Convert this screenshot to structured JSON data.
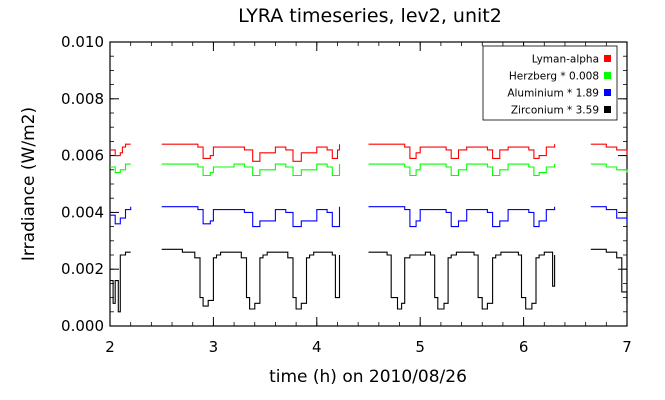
{
  "chart_data": {
    "type": "line",
    "title": "LYRA timeseries, lev2, unit2",
    "xlabel": "time (h) on 2010/08/26",
    "ylabel": "Irradiance (W/m2)",
    "xlim": [
      2,
      7
    ],
    "ylim": [
      0.0,
      0.01
    ],
    "x_ticks": [
      "2",
      "3",
      "4",
      "5",
      "6",
      "7"
    ],
    "y_ticks": [
      "0.000",
      "0.002",
      "0.004",
      "0.006",
      "0.008",
      "0.010"
    ],
    "legend_position": "top-right",
    "data_gaps": [
      [
        2.2,
        2.45
      ],
      [
        4.22,
        4.5
      ],
      [
        6.3,
        6.65
      ]
    ],
    "series": [
      {
        "name": "Lyman-alpha",
        "color": "#ff0000",
        "x": [
          2.0,
          2.05,
          2.1,
          2.12,
          2.15,
          2.2,
          2.5,
          2.7,
          2.85,
          2.9,
          2.97,
          3.0,
          3.2,
          3.3,
          3.38,
          3.45,
          3.6,
          3.7,
          3.77,
          3.85,
          4.0,
          4.1,
          4.15,
          4.2,
          4.22,
          4.5,
          4.7,
          4.85,
          4.9,
          4.96,
          5.0,
          5.25,
          5.3,
          5.37,
          5.45,
          5.65,
          5.7,
          5.77,
          5.85,
          6.05,
          6.1,
          6.15,
          6.22,
          6.3,
          6.65,
          6.8,
          6.9,
          7.0
        ],
        "values": [
          0.0062,
          0.006,
          0.0061,
          0.0063,
          0.0064,
          0.0064,
          0.0064,
          0.0064,
          0.0063,
          0.0059,
          0.006,
          0.0063,
          0.0063,
          0.0062,
          0.0058,
          0.0061,
          0.0063,
          0.0062,
          0.0058,
          0.0061,
          0.0063,
          0.0062,
          0.0059,
          0.0062,
          0.0064,
          0.0064,
          0.0064,
          0.0063,
          0.0059,
          0.0061,
          0.0063,
          0.0062,
          0.0059,
          0.0062,
          0.0063,
          0.0062,
          0.0059,
          0.0062,
          0.0063,
          0.0062,
          0.0059,
          0.006,
          0.0063,
          0.0064,
          0.0064,
          0.0063,
          0.0062,
          0.006
        ]
      },
      {
        "name": "Herzberg * 0.008",
        "color": "#00ff00",
        "x": [
          2.0,
          2.05,
          2.1,
          2.15,
          2.2,
          2.5,
          2.7,
          2.85,
          2.9,
          2.97,
          3.0,
          3.2,
          3.3,
          3.38,
          3.45,
          3.6,
          3.7,
          3.77,
          3.85,
          4.0,
          4.1,
          4.15,
          4.22,
          4.5,
          4.7,
          4.85,
          4.9,
          4.96,
          5.0,
          5.25,
          5.3,
          5.37,
          5.45,
          5.65,
          5.7,
          5.77,
          5.85,
          6.05,
          6.1,
          6.15,
          6.22,
          6.3,
          6.65,
          6.8,
          6.9,
          7.0
        ],
        "values": [
          0.0056,
          0.0054,
          0.0055,
          0.0057,
          0.0057,
          0.0057,
          0.0057,
          0.0056,
          0.0053,
          0.0054,
          0.0056,
          0.0057,
          0.0056,
          0.0053,
          0.0055,
          0.0057,
          0.0056,
          0.0053,
          0.0055,
          0.0057,
          0.0056,
          0.0053,
          0.0057,
          0.0057,
          0.0057,
          0.0056,
          0.0053,
          0.0055,
          0.0057,
          0.0056,
          0.0053,
          0.0055,
          0.0057,
          0.0056,
          0.0053,
          0.0055,
          0.0057,
          0.0056,
          0.0053,
          0.0054,
          0.0056,
          0.0057,
          0.0057,
          0.0056,
          0.0055,
          0.0054
        ]
      },
      {
        "name": "Aluminium * 1.89",
        "color": "#0000ff",
        "x": [
          2.0,
          2.05,
          2.1,
          2.15,
          2.2,
          2.5,
          2.7,
          2.85,
          2.9,
          2.97,
          3.0,
          3.2,
          3.3,
          3.38,
          3.45,
          3.6,
          3.7,
          3.77,
          3.85,
          4.0,
          4.1,
          4.15,
          4.22,
          4.5,
          4.7,
          4.85,
          4.9,
          4.96,
          5.0,
          5.25,
          5.3,
          5.37,
          5.45,
          5.65,
          5.7,
          5.77,
          5.85,
          6.05,
          6.1,
          6.15,
          6.22,
          6.3,
          6.65,
          6.8,
          6.9,
          7.0
        ],
        "values": [
          0.0039,
          0.0036,
          0.0038,
          0.0041,
          0.0042,
          0.0042,
          0.0042,
          0.0041,
          0.0036,
          0.0037,
          0.0041,
          0.0041,
          0.004,
          0.0035,
          0.0037,
          0.0041,
          0.004,
          0.0035,
          0.0037,
          0.0041,
          0.004,
          0.0035,
          0.0042,
          0.0042,
          0.0042,
          0.0041,
          0.0035,
          0.0037,
          0.0041,
          0.004,
          0.0035,
          0.0037,
          0.0041,
          0.004,
          0.0035,
          0.0037,
          0.0041,
          0.004,
          0.0035,
          0.0037,
          0.0041,
          0.0042,
          0.0042,
          0.0041,
          0.0038,
          0.0036
        ]
      },
      {
        "name": "Zirconium * 3.59",
        "color": "#000000",
        "x": [
          2.0,
          2.03,
          2.05,
          2.08,
          2.1,
          2.15,
          2.2,
          2.5,
          2.7,
          2.82,
          2.87,
          2.9,
          2.95,
          3.0,
          3.03,
          3.07,
          3.2,
          3.27,
          3.32,
          3.35,
          3.4,
          3.45,
          3.48,
          3.52,
          3.65,
          3.72,
          3.77,
          3.8,
          3.85,
          3.9,
          3.93,
          3.97,
          4.1,
          4.15,
          4.18,
          4.22,
          4.5,
          4.62,
          4.68,
          4.72,
          4.78,
          4.82,
          4.85,
          4.9,
          5.05,
          5.1,
          5.14,
          5.17,
          5.23,
          5.27,
          5.3,
          5.35,
          5.48,
          5.52,
          5.56,
          5.6,
          5.65,
          5.7,
          5.73,
          5.78,
          5.9,
          5.95,
          5.98,
          6.02,
          6.08,
          6.12,
          6.15,
          6.2,
          6.25,
          6.28,
          6.3,
          6.65,
          6.8,
          6.9,
          6.95,
          7.0
        ],
        "values": [
          0.0016,
          0.0008,
          0.0016,
          0.0005,
          0.0025,
          0.0026,
          0.0026,
          0.0027,
          0.0026,
          0.0024,
          0.001,
          0.0007,
          0.0009,
          0.0024,
          0.0025,
          0.0026,
          0.0026,
          0.0024,
          0.001,
          0.0006,
          0.0008,
          0.0024,
          0.0025,
          0.0026,
          0.0026,
          0.0024,
          0.001,
          0.0006,
          0.0008,
          0.0024,
          0.0025,
          0.0026,
          0.0026,
          0.0025,
          0.001,
          0.0025,
          0.0026,
          0.0026,
          0.0025,
          0.001,
          0.0006,
          0.0008,
          0.0024,
          0.0025,
          0.0026,
          0.0025,
          0.001,
          0.0006,
          0.0008,
          0.0024,
          0.0025,
          0.0026,
          0.0026,
          0.0025,
          0.001,
          0.0006,
          0.0008,
          0.0024,
          0.0025,
          0.0026,
          0.0026,
          0.0025,
          0.001,
          0.0006,
          0.0008,
          0.0024,
          0.0025,
          0.0026,
          0.0026,
          0.0014,
          0.0025,
          0.0027,
          0.0026,
          0.0024,
          0.0012,
          0.0008
        ]
      }
    ]
  }
}
